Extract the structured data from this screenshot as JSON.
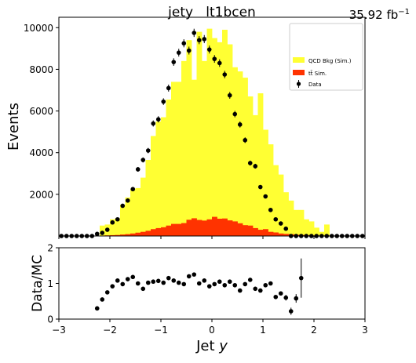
{
  "chart_data": [
    {
      "type": "bar",
      "panel": "main",
      "title": "jety   lt1bcen",
      "lumi_label": "35.92 fb",
      "lumi_unit_sup": "−1",
      "ylabel": "Events",
      "xlim": [
        -3,
        3
      ],
      "ylim": [
        0,
        10500
      ],
      "yticks": [
        2000,
        4000,
        6000,
        8000,
        10000
      ],
      "bin_edges": [
        -3.0,
        -2.9,
        -2.8,
        -2.7,
        -2.6,
        -2.5,
        -2.4,
        -2.3,
        -2.2,
        -2.1,
        -2.0,
        -1.9,
        -1.8,
        -1.7,
        -1.6,
        -1.5,
        -1.4,
        -1.3,
        -1.2,
        -1.1,
        -1.0,
        -0.9,
        -0.8,
        -0.7,
        -0.6,
        -0.5,
        -0.4,
        -0.3,
        -0.2,
        -0.1,
        0.0,
        0.1,
        0.2,
        0.3,
        0.4,
        0.5,
        0.6,
        0.7,
        0.8,
        0.9,
        1.0,
        1.1,
        1.2,
        1.3,
        1.4,
        1.5,
        1.6,
        1.7,
        1.8,
        1.9,
        2.0,
        2.1,
        2.2,
        2.3,
        2.4,
        2.5,
        2.6,
        2.7,
        2.8,
        2.9,
        3.0
      ],
      "legend": {
        "placement": "top-right",
        "entries": [
          "QCD Bkg (Sim.)",
          "tt̄ Sim.",
          "Data"
        ]
      },
      "series": [
        {
          "name": "QCD Bkg (Sim.)",
          "style": "stacked-total",
          "color": "#ffff33",
          "values": [
            0,
            0,
            0,
            0,
            0,
            0,
            0,
            0,
            500,
            550,
            800,
            850,
            1500,
            1850,
            2250,
            2300,
            2800,
            3650,
            4800,
            5500,
            5700,
            6550,
            7400,
            7400,
            8400,
            9400,
            7500,
            9800,
            8400,
            9950,
            9500,
            9300,
            9900,
            9200,
            8100,
            7900,
            7600,
            6700,
            5800,
            6850,
            5100,
            4400,
            3400,
            2950,
            2100,
            1700,
            1250,
            1250,
            800,
            700,
            400,
            200,
            550,
            0,
            0,
            0,
            0,
            0,
            0,
            0
          ]
        },
        {
          "name": "tt̄ Sim.",
          "style": "stacked",
          "color": "#ff3300",
          "values": [
            0,
            0,
            0,
            0,
            0,
            0,
            0,
            0,
            20,
            30,
            40,
            50,
            70,
            90,
            120,
            160,
            200,
            250,
            330,
            380,
            420,
            500,
            580,
            580,
            620,
            780,
            850,
            770,
            740,
            800,
            920,
            830,
            840,
            750,
            700,
            610,
            520,
            500,
            380,
            300,
            330,
            200,
            170,
            120,
            100,
            90,
            60,
            50,
            30,
            30,
            10,
            10,
            10,
            0,
            0,
            0,
            0,
            0,
            0,
            0
          ]
        },
        {
          "name": "Data",
          "style": "points",
          "color": "#000000",
          "values": [
            0,
            0,
            0,
            0,
            0,
            0,
            0,
            100,
            150,
            300,
            650,
            800,
            1450,
            1700,
            2250,
            3200,
            3650,
            4100,
            5400,
            5600,
            6450,
            7100,
            8350,
            8800,
            9250,
            8900,
            9750,
            9400,
            9450,
            8950,
            8500,
            8300,
            7750,
            6750,
            5850,
            5350,
            4600,
            3500,
            3350,
            2350,
            1900,
            1250,
            800,
            600,
            350,
            0,
            0,
            0,
            0,
            0,
            0,
            0,
            0,
            0,
            0,
            0,
            0,
            0,
            0,
            0
          ]
        }
      ]
    },
    {
      "type": "scatter",
      "panel": "ratio",
      "xlabel": "Jet ",
      "xlabel_var": "y",
      "ylabel": "Data/MC",
      "xlim": [
        -3,
        3
      ],
      "ylim": [
        0,
        2
      ],
      "xticks": [
        -3,
        -2,
        -1,
        0,
        1,
        2,
        3
      ],
      "yticks": [
        0,
        1,
        2
      ],
      "series": [
        {
          "name": "Data/MC",
          "x": [
            -2.25,
            -2.15,
            -2.05,
            -1.95,
            -1.85,
            -1.75,
            -1.65,
            -1.55,
            -1.45,
            -1.35,
            -1.25,
            -1.15,
            -1.05,
            -0.95,
            -0.85,
            -0.75,
            -0.65,
            -0.55,
            -0.45,
            -0.35,
            -0.25,
            -0.15,
            -0.05,
            0.05,
            0.15,
            0.25,
            0.35,
            0.45,
            0.55,
            0.65,
            0.75,
            0.85,
            0.95,
            1.05,
            1.15,
            1.25,
            1.35,
            1.45,
            1.55,
            1.65,
            1.75,
            1.85,
            1.95,
            2.05,
            2.15,
            2.25,
            2.35
          ],
          "y": [
            0.3,
            0.55,
            0.75,
            0.92,
            1.08,
            0.98,
            1.12,
            1.18,
            1.0,
            0.85,
            1.02,
            1.05,
            1.07,
            1.02,
            1.15,
            1.08,
            1.02,
            0.98,
            1.2,
            1.25,
            1.0,
            1.08,
            0.92,
            0.98,
            1.05,
            0.95,
            1.05,
            0.95,
            0.8,
            0.98,
            1.1,
            0.85,
            0.8,
            0.95,
            1.0,
            0.62,
            0.72,
            0.6,
            0.22,
            0.58,
            1.15,
            0,
            0,
            0,
            0,
            0,
            0
          ],
          "yerr": [
            0.06,
            0.05,
            0.05,
            0.04,
            0.04,
            0.04,
            0.04,
            0.04,
            0.03,
            0.03,
            0.03,
            0.03,
            0.03,
            0.03,
            0.03,
            0.03,
            0.03,
            0.03,
            0.03,
            0.03,
            0.03,
            0.03,
            0.03,
            0.03,
            0.03,
            0.03,
            0.03,
            0.03,
            0.03,
            0.03,
            0.03,
            0.03,
            0.03,
            0.04,
            0.04,
            0.05,
            0.06,
            0.08,
            0.1,
            0.12,
            0.55,
            0,
            0,
            0,
            0,
            0,
            0
          ]
        }
      ]
    }
  ]
}
